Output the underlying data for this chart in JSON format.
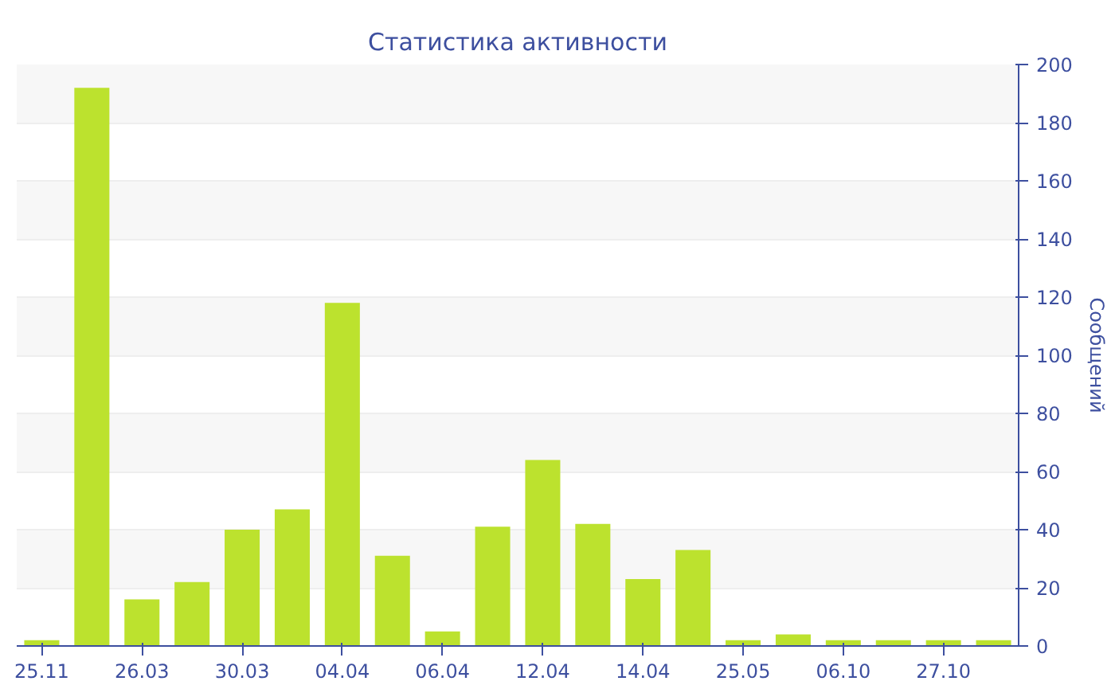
{
  "chart_data": {
    "type": "bar",
    "title": "Статистика активности",
    "ylabel": "Сообщений",
    "categories": [
      "25.11",
      null,
      "26.03",
      null,
      "30.03",
      null,
      "04.04",
      null,
      "06.04",
      null,
      "12.04",
      null,
      "14.04",
      null,
      "25.05",
      null,
      "06.10",
      null,
      "27.10",
      null
    ],
    "values": [
      2,
      192,
      16,
      22,
      40,
      47,
      118,
      31,
      5,
      41,
      64,
      42,
      23,
      33,
      2,
      4,
      2,
      2,
      2,
      2
    ],
    "color": "#bce22e",
    "ylim": [
      0,
      200
    ],
    "yticks": [
      0,
      20,
      40,
      60,
      80,
      100,
      120,
      140,
      160,
      180,
      200
    ],
    "grid": "y"
  }
}
